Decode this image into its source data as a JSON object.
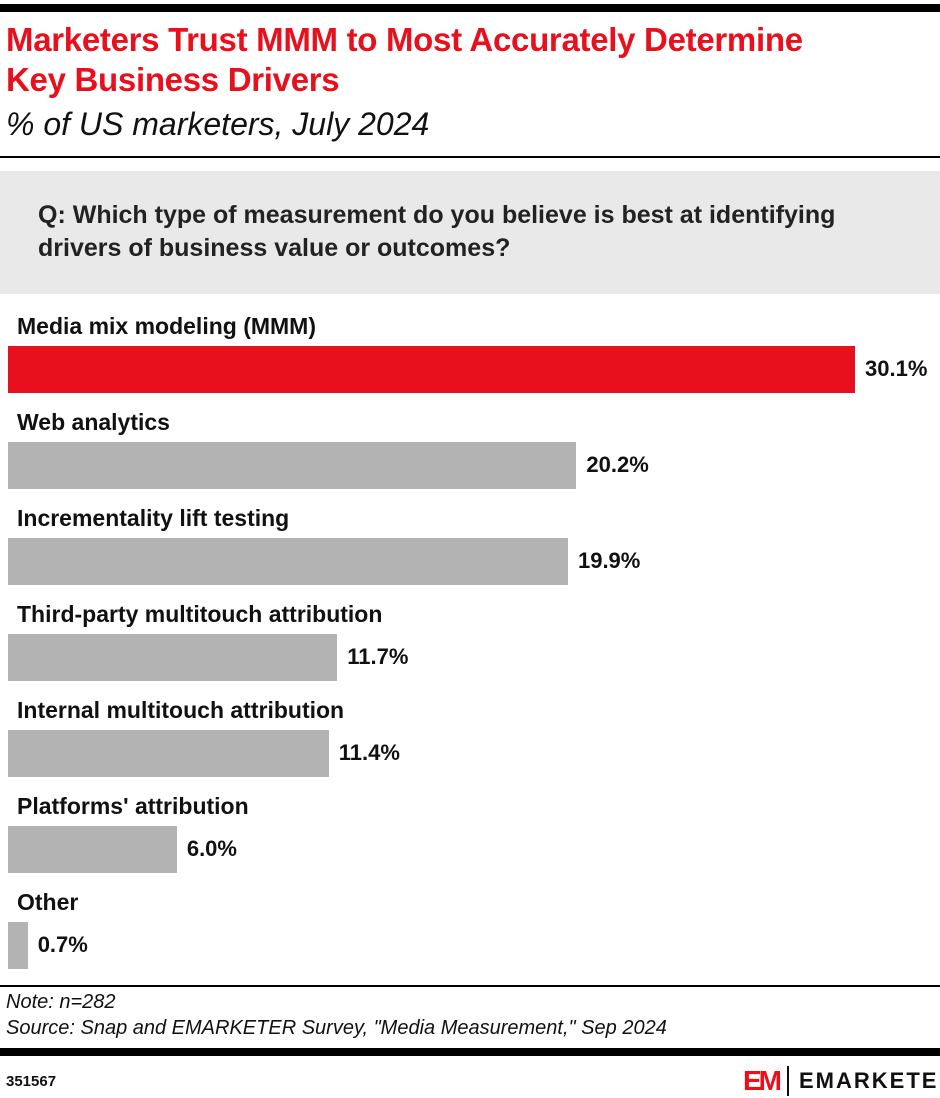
{
  "header": {
    "title": "Marketers Trust MMM to Most Accurately Determine Key Business Drivers",
    "subtitle": "% of US marketers, July 2024"
  },
  "question": "Q: Which type of measurement do you believe is best at identifying drivers of business value or outcomes?",
  "chart_data": {
    "type": "bar",
    "orientation": "horizontal",
    "categories": [
      "Media mix modeling (MMM)",
      "Web analytics",
      "Incrementality lift testing",
      "Third-party multitouch attribution",
      "Internal multitouch attribution",
      "Platforms' attribution",
      "Other"
    ],
    "values": [
      30.1,
      20.2,
      19.9,
      11.7,
      11.4,
      6.0,
      0.7
    ],
    "labels": [
      "30.1%",
      "20.2%",
      "19.9%",
      "11.7%",
      "11.4%",
      "6.0%",
      "0.7%"
    ],
    "highlight_color": "#e8101d",
    "bar_color": "#b3b3b3",
    "grid": false
  },
  "footer": {
    "note": "Note: n=282",
    "source": "Source: Snap and EMARKETER Survey, \"Media Measurement,\" Sep 2024",
    "id": "351567",
    "logo": "EMARKETER",
    "logo_mark": "EM"
  }
}
